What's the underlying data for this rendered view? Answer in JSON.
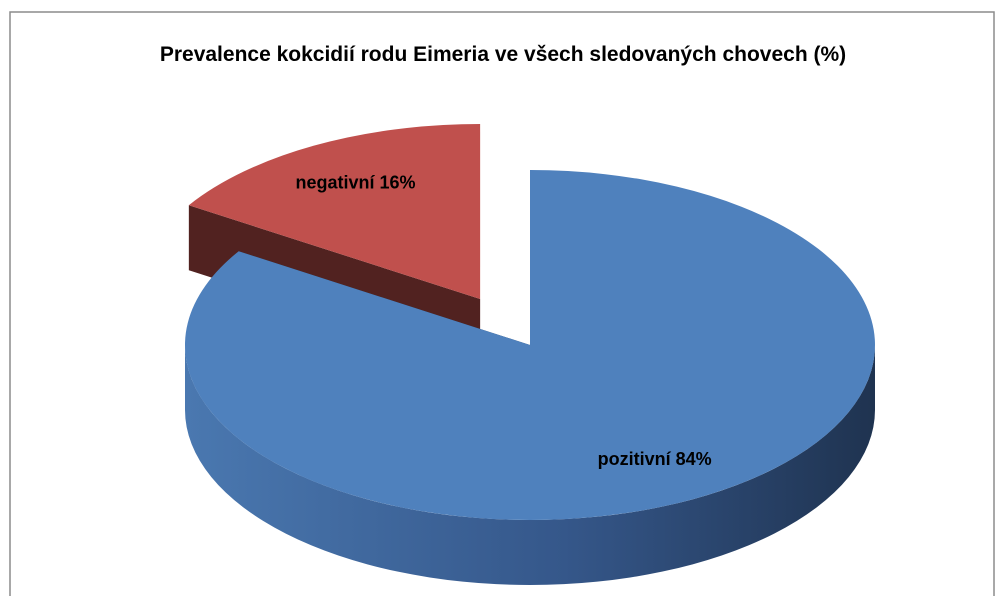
{
  "chart_data": {
    "type": "pie3d",
    "title": "Prevalence kokcidií rodu Eimeria ve všech sledovaných chovech (%)",
    "values": [
      16,
      84
    ],
    "value_labels": [
      "negativní 16%",
      "pozitivní 84%"
    ],
    "colors": [
      "#c0504d",
      "#4f81bd"
    ],
    "exploded": [
      true,
      false
    ]
  }
}
